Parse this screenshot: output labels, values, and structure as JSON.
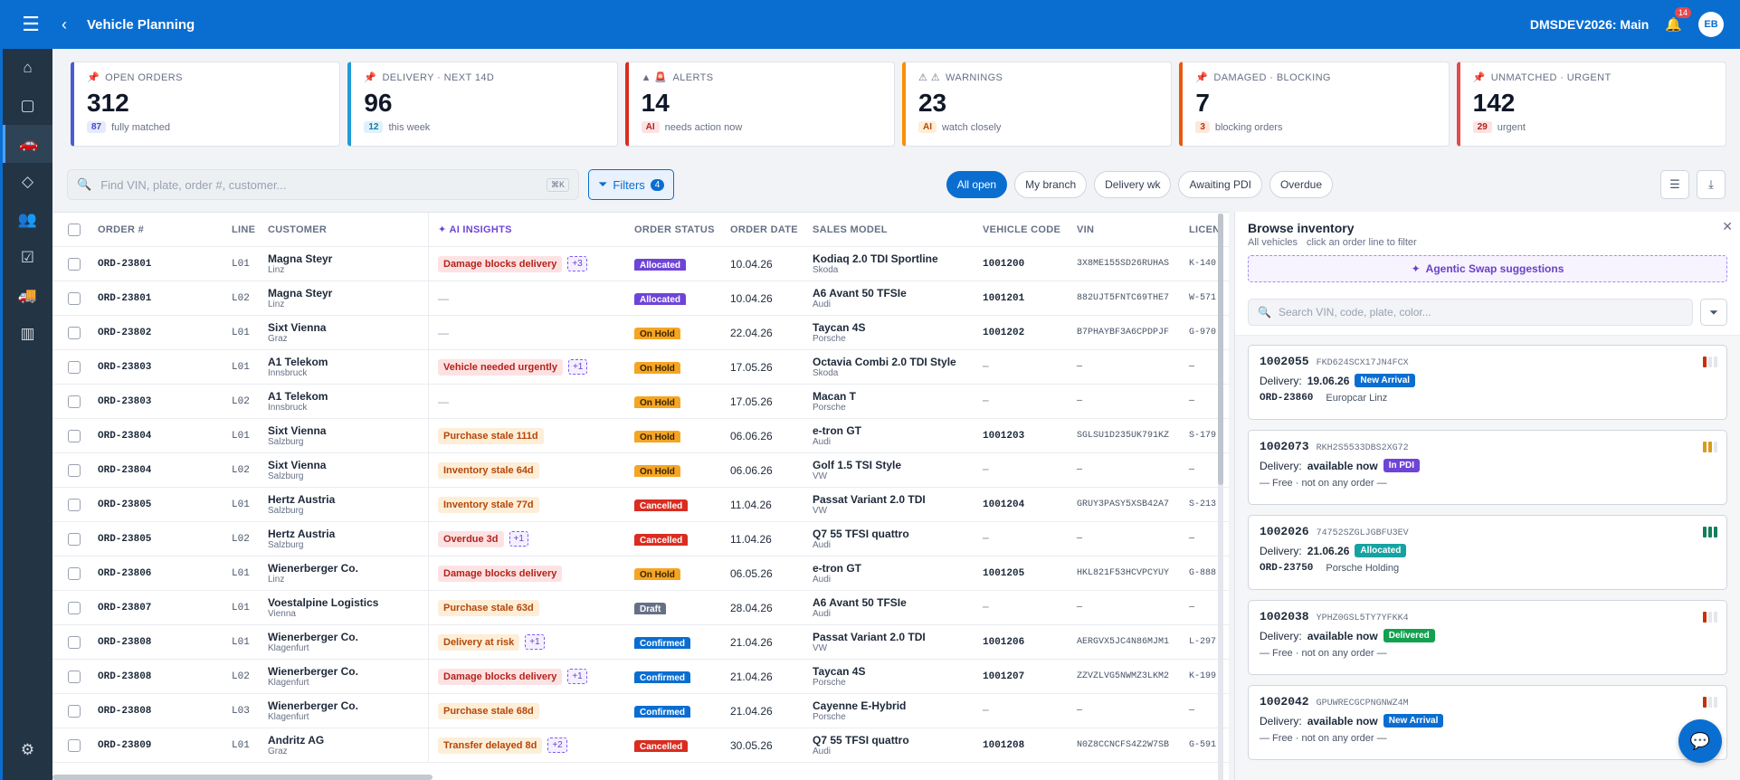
{
  "header": {
    "title": "Vehicle Planning",
    "system": "DMSDEV2026: Main",
    "notifications": "14",
    "user_initials": "EB"
  },
  "colors": {
    "brand": "#0a6ed1",
    "sidebar": "#233444"
  },
  "sidebar": {
    "items": [
      {
        "icon": "home-icon",
        "glyph": "⌂"
      },
      {
        "icon": "document-icon",
        "glyph": "▢"
      },
      {
        "icon": "car-icon",
        "glyph": "🚗"
      },
      {
        "icon": "tag-icon",
        "glyph": "◇"
      },
      {
        "icon": "users-icon",
        "glyph": "👥"
      },
      {
        "icon": "checklist-icon",
        "glyph": "☑"
      },
      {
        "icon": "truck-icon",
        "glyph": "🚚"
      },
      {
        "icon": "chart-icon",
        "glyph": "▥"
      }
    ]
  },
  "kpis": [
    {
      "label": "OPEN ORDERS",
      "icon": "📌",
      "value": "312",
      "chip": "87",
      "sub": "fully matched",
      "color": "#4b5bd6",
      "chip_bg": "#e8eafc",
      "chip_fg": "#3f4ad0"
    },
    {
      "label": "DELIVERY · NEXT 14D",
      "icon": "📌",
      "value": "96",
      "chip": "12",
      "sub": "this week",
      "color": "#1f9bd8",
      "chip_bg": "#dff2fb",
      "chip_fg": "#1778b0"
    },
    {
      "label": "ALERTS",
      "icon": "▲ 🚨",
      "value": "14",
      "chip": "AI",
      "sub": "needs action now",
      "color": "#d92d20",
      "chip_bg": "#fde2e4",
      "chip_fg": "#b42318"
    },
    {
      "label": "WARNINGS",
      "icon": "⚠ ⚠",
      "value": "23",
      "chip": "AI",
      "sub": "watch closely",
      "color": "#f79009",
      "chip_bg": "#fdeed8",
      "chip_fg": "#b54708"
    },
    {
      "label": "DAMAGED · BLOCKING",
      "icon": "📌",
      "value": "7",
      "chip": "3",
      "sub": "blocking orders",
      "color": "#e8590c",
      "chip_bg": "#fde8dc",
      "chip_fg": "#c4320a"
    },
    {
      "label": "UNMATCHED · URGENT",
      "icon": "📌",
      "value": "142",
      "chip": "29",
      "sub": "urgent",
      "color": "#e5484d",
      "chip_bg": "#fde2e4",
      "chip_fg": "#b42318"
    }
  ],
  "toolbar": {
    "search_placeholder": "Find VIN, plate, order #, customer...",
    "kbd": "⌘K",
    "filters_label": "Filters",
    "filters_count": "4",
    "quick": [
      {
        "label": "All open",
        "active": true
      },
      {
        "label": "My branch"
      },
      {
        "label": "Delivery wk"
      },
      {
        "label": "Awaiting PDI"
      },
      {
        "label": "Overdue"
      }
    ]
  },
  "table": {
    "headers": {
      "order": "ORDER #",
      "line": "LINE",
      "customer": "CUSTOMER",
      "ai": "✦ AI INSIGHTS",
      "status": "ORDER STATUS",
      "date": "ORDER DATE",
      "model": "SALES MODEL",
      "code": "VEHICLE CODE",
      "vin": "VIN",
      "license": "LICEN"
    },
    "status_colors": {
      "Allocated": "#6e44d8",
      "On Hold": "#f5a524",
      "Cancelled": "#d92d20",
      "Draft": "#667085",
      "Confirmed": "#0a6ed1"
    },
    "rows": [
      {
        "order": "ORD-23801",
        "line": "L01",
        "customer": "Magna Steyr",
        "city": "Linz",
        "ai": "Damage blocks delivery",
        "ai_tone": "red",
        "plus": "+3",
        "status": "Allocated",
        "date": "10.04.26",
        "model": "Kodiaq 2.0 TDI Sportline",
        "brand": "Skoda",
        "code": "1001200",
        "vin": "3X8ME155SD26RUHAS",
        "lic": "K-140"
      },
      {
        "order": "ORD-23801",
        "line": "L02",
        "customer": "Magna Steyr",
        "city": "Linz",
        "ai": "",
        "ai_tone": "",
        "plus": "",
        "status": "Allocated",
        "date": "10.04.26",
        "model": "A6 Avant 50 TFSIe",
        "brand": "Audi",
        "code": "1001201",
        "vin": "882UJT5FNTC69THE7",
        "lic": "W-571"
      },
      {
        "order": "ORD-23802",
        "line": "L01",
        "customer": "Sixt Vienna",
        "city": "Graz",
        "ai": "",
        "ai_tone": "",
        "plus": "",
        "status": "On Hold",
        "date": "22.04.26",
        "model": "Taycan 4S",
        "brand": "Porsche",
        "code": "1001202",
        "vin": "B7PHAYBF3A6CPDPJF",
        "lic": "G-970"
      },
      {
        "order": "ORD-23803",
        "line": "L01",
        "customer": "A1 Telekom",
        "city": "Innsbruck",
        "ai": "Vehicle needed urgently",
        "ai_tone": "red",
        "plus": "+1",
        "status": "On Hold",
        "date": "17.05.26",
        "model": "Octavia Combi 2.0 TDI Style",
        "brand": "Skoda",
        "code": "",
        "vin": "",
        "lic": ""
      },
      {
        "order": "ORD-23803",
        "line": "L02",
        "customer": "A1 Telekom",
        "city": "Innsbruck",
        "ai": "",
        "ai_tone": "",
        "plus": "",
        "status": "On Hold",
        "date": "17.05.26",
        "model": "Macan T",
        "brand": "Porsche",
        "code": "",
        "vin": "",
        "lic": ""
      },
      {
        "order": "ORD-23804",
        "line": "L01",
        "customer": "Sixt Vienna",
        "city": "Salzburg",
        "ai": "Purchase stale 111d",
        "ai_tone": "orange",
        "plus": "",
        "status": "On Hold",
        "date": "06.06.26",
        "model": "e-tron GT",
        "brand": "Audi",
        "code": "1001203",
        "vin": "SGLSU1D235UK791KZ",
        "lic": "S-179"
      },
      {
        "order": "ORD-23804",
        "line": "L02",
        "customer": "Sixt Vienna",
        "city": "Salzburg",
        "ai": "Inventory stale 64d",
        "ai_tone": "orange",
        "plus": "",
        "status": "On Hold",
        "date": "06.06.26",
        "model": "Golf 1.5 TSI Style",
        "brand": "VW",
        "code": "",
        "vin": "",
        "lic": ""
      },
      {
        "order": "ORD-23805",
        "line": "L01",
        "customer": "Hertz Austria",
        "city": "Salzburg",
        "ai": "Inventory stale 77d",
        "ai_tone": "orange",
        "plus": "",
        "status": "Cancelled",
        "date": "11.04.26",
        "model": "Passat Variant 2.0 TDI",
        "brand": "VW",
        "code": "1001204",
        "vin": "GRUY3PASY5XSB42A7",
        "lic": "S-213"
      },
      {
        "order": "ORD-23805",
        "line": "L02",
        "customer": "Hertz Austria",
        "city": "Salzburg",
        "ai": "Overdue 3d",
        "ai_tone": "red",
        "plus": "+1",
        "status": "Cancelled",
        "date": "11.04.26",
        "model": "Q7 55 TFSI quattro",
        "brand": "Audi",
        "code": "",
        "vin": "",
        "lic": ""
      },
      {
        "order": "ORD-23806",
        "line": "L01",
        "customer": "Wienerberger Co.",
        "city": "Linz",
        "ai": "Damage blocks delivery",
        "ai_tone": "red",
        "plus": "",
        "status": "On Hold",
        "date": "06.05.26",
        "model": "e-tron GT",
        "brand": "Audi",
        "code": "1001205",
        "vin": "HKL821F53HCVPCYUY",
        "lic": "G-888"
      },
      {
        "order": "ORD-23807",
        "line": "L01",
        "customer": "Voestalpine Logistics",
        "city": "Vienna",
        "ai": "Purchase stale 63d",
        "ai_tone": "orange",
        "plus": "",
        "status": "Draft",
        "date": "28.04.26",
        "model": "A6 Avant 50 TFSIe",
        "brand": "Audi",
        "code": "",
        "vin": "",
        "lic": ""
      },
      {
        "order": "ORD-23808",
        "line": "L01",
        "customer": "Wienerberger Co.",
        "city": "Klagenfurt",
        "ai": "Delivery at risk",
        "ai_tone": "orange",
        "plus": "+1",
        "status": "Confirmed",
        "date": "21.04.26",
        "model": "Passat Variant 2.0 TDI",
        "brand": "VW",
        "code": "1001206",
        "vin": "AERGVX5JC4N86MJM1",
        "lic": "L-297"
      },
      {
        "order": "ORD-23808",
        "line": "L02",
        "customer": "Wienerberger Co.",
        "city": "Klagenfurt",
        "ai": "Damage blocks delivery",
        "ai_tone": "red",
        "plus": "+1",
        "status": "Confirmed",
        "date": "21.04.26",
        "model": "Taycan 4S",
        "brand": "Porsche",
        "code": "1001207",
        "vin": "ZZVZLVG5NWMZ3LKM2",
        "lic": "K-199"
      },
      {
        "order": "ORD-23808",
        "line": "L03",
        "customer": "Wienerberger Co.",
        "city": "Klagenfurt",
        "ai": "Purchase stale 68d",
        "ai_tone": "orange",
        "plus": "",
        "status": "Confirmed",
        "date": "21.04.26",
        "model": "Cayenne E-Hybrid",
        "brand": "Porsche",
        "code": "",
        "vin": "",
        "lic": ""
      },
      {
        "order": "ORD-23809",
        "line": "L01",
        "customer": "Andritz AG",
        "city": "Graz",
        "ai": "Transfer delayed 8d",
        "ai_tone": "orange",
        "plus": "+2",
        "status": "Cancelled",
        "date": "30.05.26",
        "model": "Q7 55 TFSI quattro",
        "brand": "Audi",
        "code": "1001208",
        "vin": "N0Z8CCNCFS4Z2W7SB",
        "lic": "G-591"
      }
    ]
  },
  "panel": {
    "title": "Browse inventory",
    "scope": "All vehicles",
    "hint": "click an order line to filter",
    "agentic": "Agentic Swap suggestions",
    "search_placeholder": "Search VIN, code, plate, color...",
    "delivery_label": "Delivery:",
    "cards": [
      {
        "code": "1002055",
        "vin": "FKD624SCX17JN4FCX",
        "delivery": "19.06.26",
        "badge": "New Arrival",
        "badge_color": "#0a6ed1",
        "order": "ORD-23860",
        "customer": "Europcar Linz",
        "free": "",
        "bars": [
          "#c4320a",
          "#e4e7ec",
          "#e4e7ec"
        ]
      },
      {
        "code": "1002073",
        "vin": "RKH2S5533DBS2XG72",
        "delivery": "available now",
        "badge": "In PDI",
        "badge_color": "#6e44d8",
        "order": "",
        "customer": "",
        "free": "— Free · not on any order —",
        "bars": [
          "#d99a1e",
          "#d99a1e",
          "#e4e7ec"
        ]
      },
      {
        "code": "1002026",
        "vin": "74752SZGLJGBFU3EV",
        "delivery": "21.06.26",
        "badge": "Allocated",
        "badge_color": "#17a2a2",
        "order": "ORD-23750",
        "customer": "Porsche Holding",
        "free": "",
        "bars": [
          "#12805c",
          "#12805c",
          "#12805c"
        ]
      },
      {
        "code": "1002038",
        "vin": "YPHZ0GSL5TY7YFKK4",
        "delivery": "available now",
        "badge": "Delivered",
        "badge_color": "#12a150",
        "order": "",
        "customer": "",
        "free": "— Free · not on any order —",
        "bars": [
          "#c4320a",
          "#e4e7ec",
          "#e4e7ec"
        ]
      },
      {
        "code": "1002042",
        "vin": "GPUWRECGCPNGNWZ4M",
        "delivery": "available now",
        "badge": "New Arrival",
        "badge_color": "#0a6ed1",
        "order": "",
        "customer": "",
        "free": "— Free · not on any order —",
        "bars": [
          "#c4320a",
          "#e4e7ec",
          "#e4e7ec"
        ]
      }
    ]
  }
}
